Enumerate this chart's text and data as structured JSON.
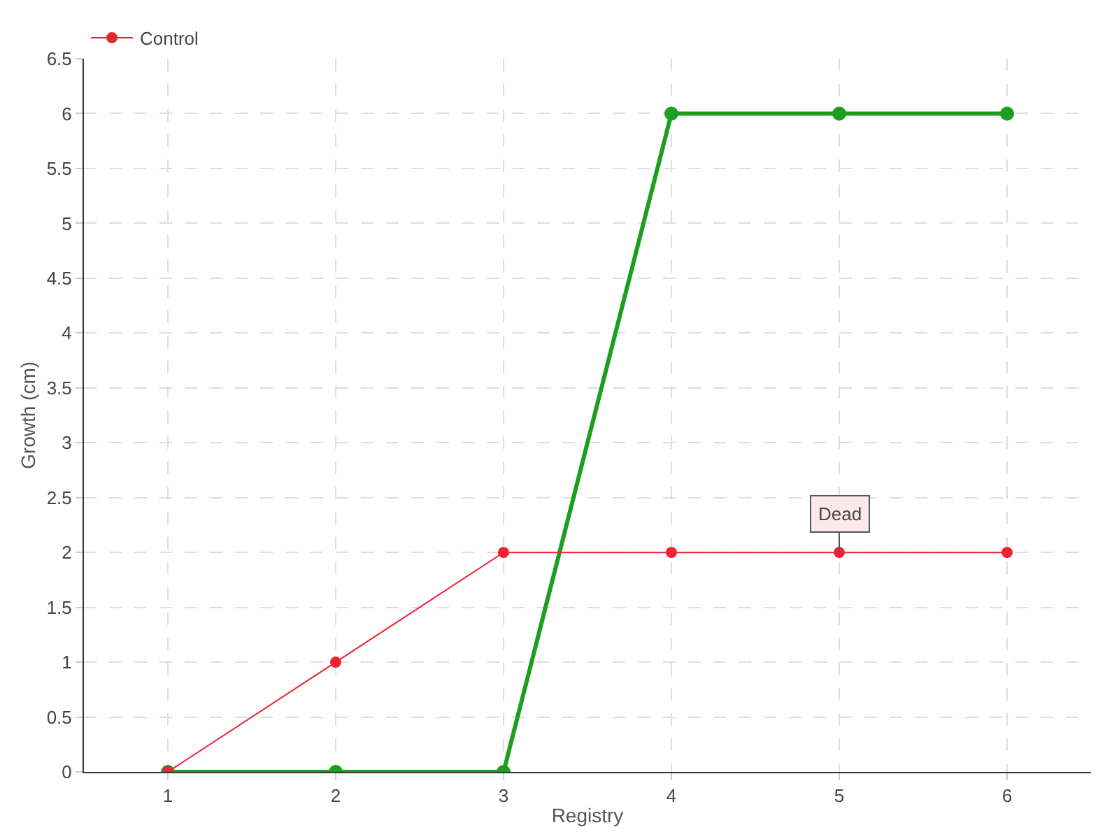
{
  "chart_data": {
    "type": "line",
    "xlabel": "Registry",
    "ylabel": "Growth (cm)",
    "x": [
      1,
      2,
      3,
      4,
      5,
      6
    ],
    "series": [
      {
        "color": "#1e9e1e",
        "values": [
          0,
          0,
          0,
          6,
          6,
          6
        ]
      },
      {
        "name": "Control",
        "color": "#ee2233",
        "values": [
          0,
          1,
          2,
          2,
          2,
          2
        ]
      }
    ],
    "xlim": [
      0.5,
      6.5
    ],
    "xticks": [
      1,
      2,
      3,
      4,
      5,
      6
    ],
    "ylim": [
      0,
      6.5
    ],
    "yticks": [
      0,
      0.5,
      1,
      1.5,
      2,
      2.5,
      3,
      3.5,
      4,
      4.5,
      5,
      5.5,
      6,
      6.5
    ],
    "annotations": [
      {
        "text": "Dead",
        "x": 5,
        "y": 2
      }
    ],
    "grid": true,
    "legend": "top left",
    "marker": "circle",
    "line_style": "solid"
  }
}
